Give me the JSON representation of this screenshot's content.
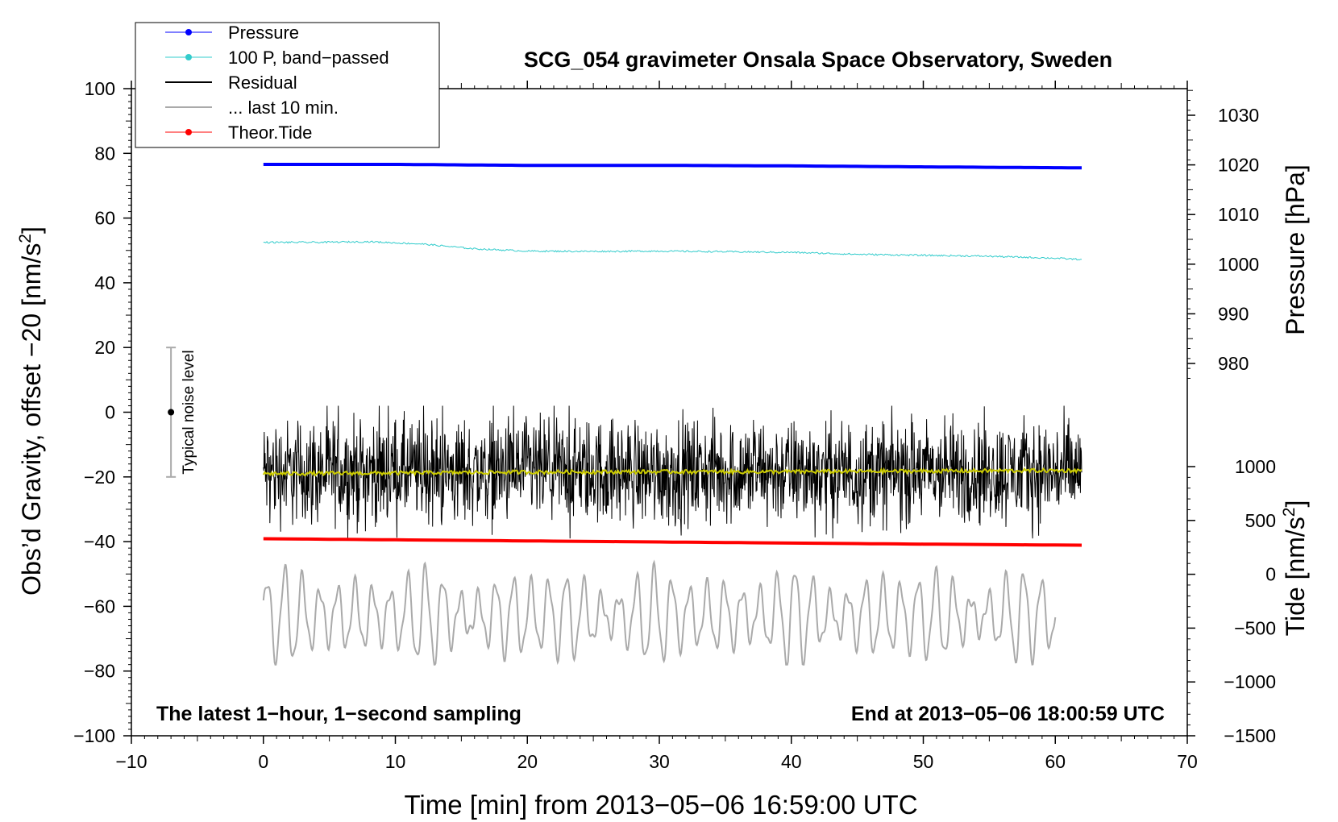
{
  "chart_data": {
    "type": "line",
    "title": "SCG_054 gravimeter Onsala Space Observatory, Sweden",
    "xlabel": "Time [min] from 2013−05−06 16:59:00 UTC",
    "ylabel_left": "Obs’d Gravity, offset −20 [nm/s²]",
    "ylabel_right_pressure": "Pressure [hPa]",
    "ylabel_right_tide": "Tide [nm/s²]",
    "xlim": [
      -10,
      70
    ],
    "ylim_left": [
      -100,
      100
    ],
    "x_ticks": [
      "−10",
      "0",
      "10",
      "20",
      "30",
      "40",
      "50",
      "60",
      "70"
    ],
    "y_left_ticks": [
      "100",
      "80",
      "60",
      "40",
      "20",
      "0",
      "−20",
      "−40",
      "−60",
      "−80",
      "−100"
    ],
    "pressure_axis": {
      "ticks": [
        "1030",
        "1020",
        "1010",
        "1000",
        "990",
        "980"
      ],
      "range_hpa": [
        980,
        1030
      ]
    },
    "tide_axis": {
      "ticks": [
        "1000",
        "500",
        "0",
        "−500",
        "−1000",
        "−1500"
      ],
      "range_nm_s2": [
        -1500,
        1000
      ]
    },
    "legend": {
      "position": "top-left",
      "entries": [
        {
          "label": "Pressure",
          "color": "#0000ff",
          "marker": "dot"
        },
        {
          "label": "100 P, band−passed",
          "color": "#33cccc",
          "marker": "dot"
        },
        {
          "label": "Residual",
          "color": "#000000",
          "marker": "line"
        },
        {
          "label": "... last 10 min.",
          "color": "#aaaaaa",
          "marker": "line"
        },
        {
          "label": "Theor.Tide",
          "color": "#ff0000",
          "marker": "dot"
        }
      ]
    },
    "series": [
      {
        "name": "Pressure",
        "color": "#0000ff",
        "axis": "pressure",
        "x": [
          0,
          10,
          20,
          30,
          40,
          50,
          62
        ],
        "y": [
          1020.1,
          1020.1,
          1019.9,
          1019.9,
          1019.8,
          1019.6,
          1019.4
        ]
      },
      {
        "name": "100 P, band−passed",
        "color": "#33cccc",
        "axis": "left",
        "x": [
          0,
          4,
          8,
          12,
          16,
          20,
          25,
          30,
          35,
          40,
          45,
          50,
          55,
          60,
          62
        ],
        "y": [
          52.5,
          52.5,
          52.7,
          52,
          50.5,
          49.8,
          49.7,
          49.8,
          49.6,
          49.4,
          48.8,
          48.5,
          48.2,
          47.6,
          47.2
        ]
      },
      {
        "name": "Residual",
        "color": "#000000",
        "axis": "left",
        "x_range": [
          0,
          62
        ],
        "mean": -18.5,
        "typical_amplitude": 8,
        "min": -39,
        "max": 2
      },
      {
        "name": "Residual smoothed",
        "color": "#cccc00",
        "axis": "left",
        "x": [
          0,
          10,
          20,
          30,
          40,
          50,
          62
        ],
        "y": [
          -19,
          -18.8,
          -18.5,
          -18.4,
          -18.4,
          -18.2,
          -18
        ]
      },
      {
        "name": "... last 10 min.",
        "color": "#aaaaaa",
        "axis": "left",
        "x_range": [
          0,
          60
        ],
        "center": -63,
        "amplitude_range": [
          5,
          15
        ],
        "min": -78,
        "max": -42
      },
      {
        "name": "Theor.Tide",
        "color": "#ff0000",
        "axis": "tide",
        "x": [
          0,
          10,
          20,
          30,
          40,
          50,
          62
        ],
        "y": [
          330,
          320,
          310,
          300,
          290,
          280,
          270
        ]
      }
    ],
    "noise_bar": {
      "label": "Typical noise level",
      "x": -7,
      "y_center": 0,
      "y_min": -20,
      "y_max": 20
    },
    "annotations": {
      "bottom_left": "The latest 1−hour, 1−second sampling",
      "bottom_right": "End at 2013−05−06 18:00:59 UTC"
    }
  }
}
